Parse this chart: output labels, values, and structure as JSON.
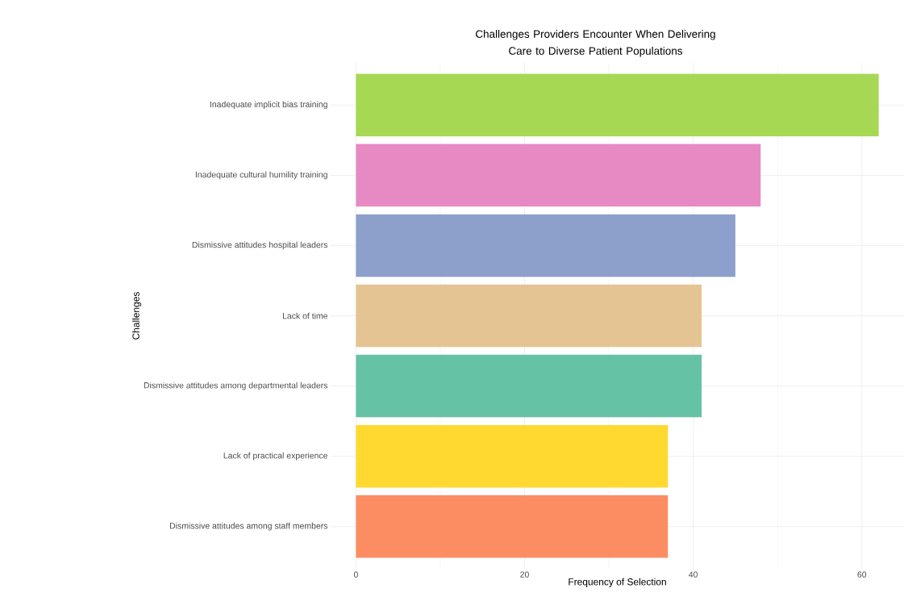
{
  "chart_data": {
    "type": "bar",
    "orientation": "horizontal",
    "title": "Challenges Providers Encounter When Delivering\nCare to Diverse Patient Populations",
    "xlabel": "Frequency of Selection",
    "ylabel": "Challenges",
    "categories": [
      "Inadequate implicit bias training",
      "Inadequate cultural humility training",
      "Dismissive attitudes hospital leaders",
      "Lack of time",
      "Dismissive attitudes among departmental leaders",
      "Lack of practical experience",
      "Dismissive attitudes among staff members"
    ],
    "values": [
      62,
      48,
      45,
      41,
      41,
      37,
      37
    ],
    "colors": [
      "#a6d854",
      "#e78ac3",
      "#8da0cb",
      "#e5c494",
      "#66c2a5",
      "#ffd92f",
      "#fc8d62"
    ],
    "xlim": [
      -3,
      65
    ],
    "xticks": [
      0,
      20,
      40,
      60
    ],
    "grid": true
  }
}
